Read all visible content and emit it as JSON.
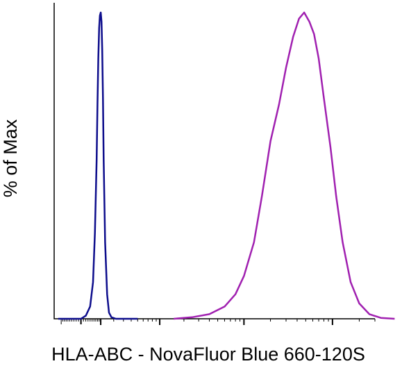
{
  "chart_data": {
    "type": "line",
    "title": "",
    "xlabel": "HLA-ABC - NovaFluor Blue 660-120S",
    "ylabel": "% of Max",
    "x_scale": "log",
    "ylim": [
      0,
      100
    ],
    "grid": false,
    "legend": "none",
    "series": [
      {
        "color": "#0d0d8c",
        "x": [
          -120,
          -60,
          0,
          20,
          40,
          55,
          65,
          75,
          80,
          85,
          90,
          95,
          100,
          105,
          110,
          115,
          120,
          130,
          145,
          160,
          180,
          220,
          300,
          500
        ],
        "y": [
          0,
          0,
          0,
          1,
          4,
          12,
          28,
          52,
          70,
          85,
          95,
          99,
          100,
          97,
          88,
          72,
          52,
          25,
          8,
          2,
          0.5,
          0,
          0,
          0
        ]
      },
      {
        "color": "#a020b0",
        "x": [
          1500,
          2500,
          4000,
          6000,
          8000,
          10000,
          13000,
          16000,
          20000,
          25000,
          30000,
          36000,
          42000,
          48000,
          55000,
          62000,
          70000,
          80000,
          95000,
          110000,
          130000,
          160000,
          200000,
          260000,
          350000,
          500000
        ],
        "y": [
          0,
          0.5,
          1.5,
          4,
          8,
          14,
          25,
          40,
          58,
          70,
          82,
          92,
          98,
          100,
          97,
          93,
          85,
          72,
          56,
          40,
          25,
          12,
          5,
          1.5,
          0.3,
          0
        ]
      }
    ]
  }
}
